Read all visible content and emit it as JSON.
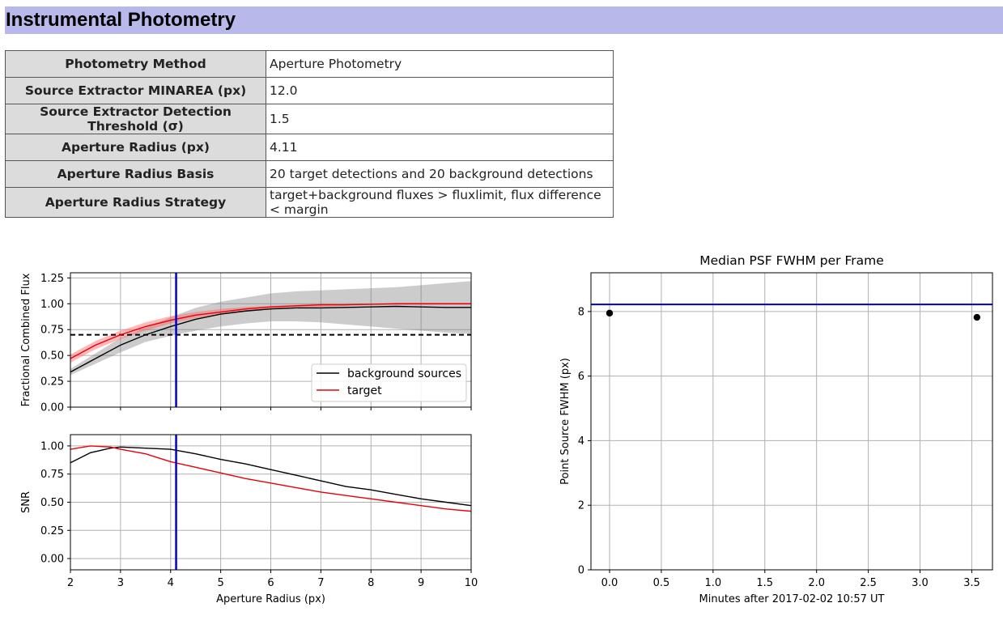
{
  "header": {
    "title": "Instrumental Photometry"
  },
  "params": [
    {
      "label": "Photometry Method",
      "value": "Aperture Photometry"
    },
    {
      "label": "Source Extractor MINAREA (px)",
      "value": "12.0"
    },
    {
      "label": "Source Extractor Detection Threshold (σ)",
      "value": "1.5"
    },
    {
      "label": "Aperture Radius (px)",
      "value": "4.11"
    },
    {
      "label": "Aperture Radius Basis",
      "value": "20 target detections and 20 background detections"
    },
    {
      "label": "Aperture Radius Strategy",
      "value": "target+background fluxes > fluxlimit, flux difference < margin"
    }
  ],
  "chart_data": [
    {
      "type": "line",
      "title": "",
      "xlabel": "",
      "ylabel": "Fractional Combined Flux",
      "xlim": [
        2,
        10
      ],
      "ylim": [
        0,
        1.3
      ],
      "xticks": [
        "2",
        "3",
        "4",
        "5",
        "6",
        "7",
        "8",
        "9",
        "10"
      ],
      "yticks": [
        "0.00",
        "0.25",
        "0.50",
        "0.75",
        "1.00",
        "1.25"
      ],
      "grid": true,
      "legend": "lower-right",
      "x": [
        2.0,
        2.5,
        3.0,
        3.5,
        4.0,
        4.5,
        5.0,
        5.5,
        6.0,
        6.5,
        7.0,
        7.5,
        8.0,
        8.5,
        9.0,
        9.5,
        10.0
      ],
      "series": [
        {
          "name": "background sources",
          "color": "#000000",
          "values": [
            0.34,
            0.47,
            0.6,
            0.7,
            0.78,
            0.85,
            0.9,
            0.93,
            0.95,
            0.96,
            0.96,
            0.965,
            0.97,
            0.975,
            0.97,
            0.965,
            0.965
          ],
          "band_low": [
            0.31,
            0.42,
            0.53,
            0.63,
            0.69,
            0.74,
            0.78,
            0.81,
            0.83,
            0.83,
            0.82,
            0.8,
            0.78,
            0.76,
            0.74,
            0.72,
            0.71
          ],
          "band_high": [
            0.37,
            0.52,
            0.67,
            0.77,
            0.87,
            0.96,
            1.02,
            1.06,
            1.1,
            1.12,
            1.13,
            1.14,
            1.15,
            1.16,
            1.18,
            1.2,
            1.22
          ]
        },
        {
          "name": "target",
          "color": "#e8000b",
          "values": [
            0.47,
            0.6,
            0.7,
            0.78,
            0.84,
            0.89,
            0.92,
            0.95,
            0.97,
            0.98,
            0.99,
            0.99,
            0.995,
            1.0,
            1.0,
            1.0,
            1.0
          ],
          "band_low": [
            0.43,
            0.56,
            0.66,
            0.74,
            0.81,
            0.86,
            0.9,
            0.93,
            0.95,
            0.96,
            0.97,
            0.98,
            0.99,
            0.99,
            0.99,
            0.99,
            0.99
          ],
          "band_high": [
            0.51,
            0.64,
            0.74,
            0.82,
            0.88,
            0.92,
            0.95,
            0.97,
            0.98,
            0.99,
            1.0,
            1.0,
            1.0,
            1.01,
            1.01,
            1.01,
            1.01
          ]
        }
      ],
      "hline": {
        "y": 0.7,
        "style": "dashed",
        "color": "#000000"
      },
      "vline": {
        "x": 4.11,
        "color": "#0000cc"
      }
    },
    {
      "type": "line",
      "title": "",
      "xlabel": "Aperture Radius (px)",
      "ylabel": "SNR",
      "xlim": [
        2,
        10
      ],
      "ylim": [
        -0.1,
        1.1
      ],
      "xticks": [
        "2",
        "3",
        "4",
        "5",
        "6",
        "7",
        "8",
        "9",
        "10"
      ],
      "yticks": [
        "0.00",
        "0.25",
        "0.50",
        "0.75",
        "1.00"
      ],
      "grid": true,
      "x": [
        2.0,
        2.4,
        2.8,
        3.0,
        3.5,
        4.0,
        4.5,
        5.0,
        5.5,
        6.0,
        6.5,
        7.0,
        7.5,
        8.0,
        8.5,
        9.0,
        9.5,
        10.0
      ],
      "series": [
        {
          "name": "background sources",
          "color": "#000000",
          "values": [
            0.85,
            0.94,
            0.98,
            0.99,
            0.98,
            0.97,
            0.93,
            0.88,
            0.84,
            0.79,
            0.74,
            0.69,
            0.64,
            0.61,
            0.57,
            0.53,
            0.5,
            0.47
          ]
        },
        {
          "name": "target",
          "color": "#e8000b",
          "values": [
            0.97,
            1.0,
            0.99,
            0.97,
            0.93,
            0.86,
            0.81,
            0.76,
            0.71,
            0.67,
            0.63,
            0.59,
            0.56,
            0.53,
            0.5,
            0.47,
            0.44,
            0.42
          ]
        }
      ],
      "vline": {
        "x": 4.11,
        "color": "#0000cc"
      }
    },
    {
      "type": "scatter",
      "title": "Median PSF FWHM per Frame",
      "xlabel": "Minutes after 2017-02-02 10:57 UT",
      "ylabel": "Point Source FWHM (px)",
      "xlim": [
        -0.18,
        3.7
      ],
      "ylim": [
        0,
        9.2
      ],
      "xticks": [
        "0.0",
        "0.5",
        "1.0",
        "1.5",
        "2.0",
        "2.5",
        "3.0",
        "3.5"
      ],
      "yticks": [
        "0",
        "2",
        "4",
        "6",
        "8"
      ],
      "grid": true,
      "points": [
        {
          "x": 0.0,
          "y": 7.95
        },
        {
          "x": 3.55,
          "y": 7.82
        }
      ],
      "hline": {
        "y": 8.22,
        "color": "#0000cc"
      }
    }
  ]
}
